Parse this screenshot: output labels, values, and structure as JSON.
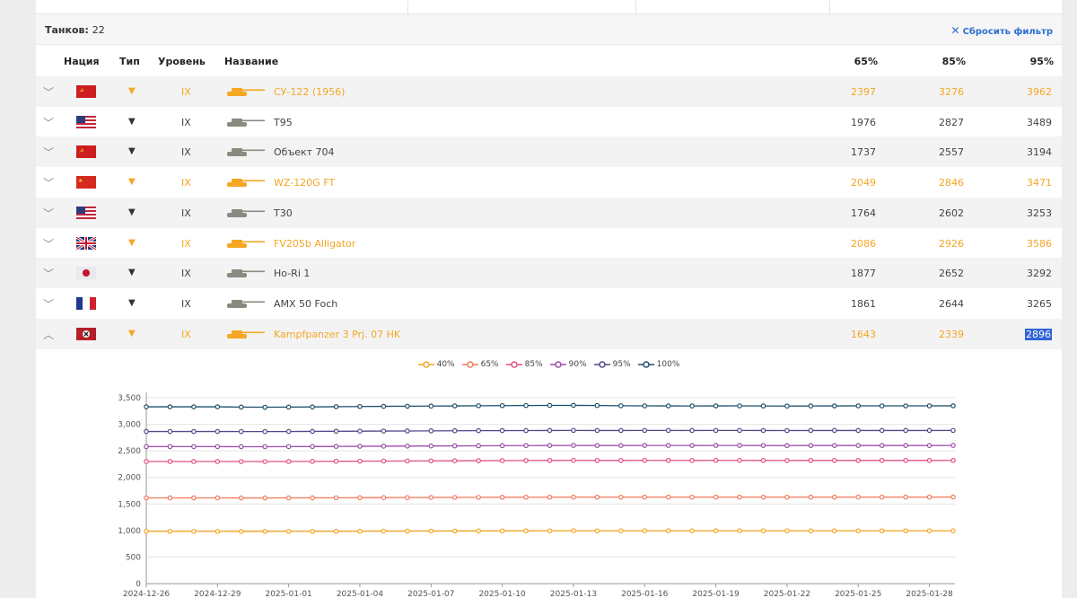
{
  "tanks_count": {
    "label": "Танков:",
    "value": "22"
  },
  "reset_filter": "Сбросить фильтр",
  "columns": {
    "nation": "Нация",
    "type": "Тип",
    "tier": "Уровень",
    "name": "Название",
    "p65": "65%",
    "p85": "85%",
    "p95": "95%"
  },
  "rows": [
    {
      "nation": "ussr",
      "premium": true,
      "tier": "IX",
      "name": "СУ-122 (1956)",
      "v65": "2397",
      "v85": "3276",
      "v95": "3962",
      "expanded": false
    },
    {
      "nation": "usa",
      "premium": false,
      "tier": "IX",
      "name": "T95",
      "v65": "1976",
      "v85": "2827",
      "v95": "3489",
      "expanded": false
    },
    {
      "nation": "ussr",
      "premium": false,
      "tier": "IX",
      "name": "Объект 704",
      "v65": "1737",
      "v85": "2557",
      "v95": "3194",
      "expanded": false
    },
    {
      "nation": "china",
      "premium": true,
      "tier": "IX",
      "name": "WZ-120G FT",
      "v65": "2049",
      "v85": "2846",
      "v95": "3471",
      "expanded": false
    },
    {
      "nation": "usa",
      "premium": false,
      "tier": "IX",
      "name": "T30",
      "v65": "1764",
      "v85": "2602",
      "v95": "3253",
      "expanded": false
    },
    {
      "nation": "uk",
      "premium": true,
      "tier": "IX",
      "name": "FV205b Alligator",
      "v65": "2086",
      "v85": "2926",
      "v95": "3586",
      "expanded": false
    },
    {
      "nation": "japan",
      "premium": false,
      "tier": "IX",
      "name": "Ho-Ri 1",
      "v65": "1877",
      "v85": "2652",
      "v95": "3292",
      "expanded": false
    },
    {
      "nation": "france",
      "premium": false,
      "tier": "IX",
      "name": "AMX 50 Foch",
      "v65": "1861",
      "v85": "2644",
      "v95": "3265",
      "expanded": false
    },
    {
      "nation": "germany",
      "premium": true,
      "tier": "IX",
      "name": "Kampfpanzer 3 Prj. 07 HK",
      "v65": "1643",
      "v85": "2339",
      "v95": "2896",
      "expanded": true
    }
  ],
  "colors": {
    "accent": "#f5a623",
    "link": "#2c6fcf",
    "selection": "#2f64d7"
  },
  "chart_data": {
    "type": "line",
    "title": "",
    "xlabel": "",
    "ylabel": "",
    "ylim": [
      0,
      3500
    ],
    "yticks": [
      "0",
      "500",
      "1,000",
      "1,500",
      "2,000",
      "2,500",
      "3,000",
      "3,500"
    ],
    "xticks": [
      "2024-12-26",
      "2024-12-29",
      "2025-01-01",
      "2025-01-04",
      "2025-01-07",
      "2025-01-10",
      "2025-01-13",
      "2025-01-16",
      "2025-01-19",
      "2025-01-22",
      "2025-01-25",
      "2025-01-28"
    ],
    "x_points": 35,
    "legend_position": "top-center",
    "grid": true,
    "series": [
      {
        "name": "40%",
        "color": "#f5a623",
        "values": [
          985,
          985,
          985,
          985,
          984,
          984,
          985,
          985,
          986,
          987,
          988,
          989,
          990,
          991,
          992,
          993,
          994,
          995,
          996,
          995,
          995,
          996,
          996,
          995,
          996,
          996,
          995,
          995,
          995,
          995,
          995,
          995,
          995,
          995,
          995
        ]
      },
      {
        "name": "65%",
        "color": "#f47a5a",
        "values": [
          1615,
          1615,
          1615,
          1615,
          1614,
          1614,
          1615,
          1616,
          1617,
          1618,
          1620,
          1621,
          1622,
          1623,
          1625,
          1626,
          1627,
          1628,
          1630,
          1629,
          1629,
          1630,
          1630,
          1629,
          1630,
          1630,
          1629,
          1629,
          1630,
          1630,
          1630,
          1630,
          1630,
          1630,
          1631
        ]
      },
      {
        "name": "85%",
        "color": "#e0508a",
        "values": [
          2300,
          2300,
          2300,
          2300,
          2299,
          2299,
          2300,
          2302,
          2304,
          2306,
          2308,
          2310,
          2312,
          2313,
          2315,
          2317,
          2318,
          2320,
          2321,
          2320,
          2320,
          2321,
          2321,
          2320,
          2321,
          2321,
          2320,
          2319,
          2320,
          2320,
          2320,
          2320,
          2320,
          2320,
          2321
        ]
      },
      {
        "name": "90%",
        "color": "#9b4fa8",
        "values": [
          2580,
          2580,
          2580,
          2580,
          2579,
          2579,
          2580,
          2582,
          2584,
          2586,
          2588,
          2590,
          2592,
          2594,
          2596,
          2598,
          2600,
          2601,
          2602,
          2601,
          2601,
          2602,
          2602,
          2601,
          2602,
          2602,
          2601,
          2600,
          2601,
          2601,
          2601,
          2601,
          2601,
          2601,
          2602
        ]
      },
      {
        "name": "95%",
        "color": "#4e4b8c",
        "values": [
          2865,
          2865,
          2865,
          2865,
          2864,
          2864,
          2865,
          2867,
          2869,
          2871,
          2873,
          2875,
          2877,
          2879,
          2881,
          2882,
          2883,
          2884,
          2885,
          2884,
          2884,
          2885,
          2885,
          2884,
          2885,
          2885,
          2884,
          2883,
          2884,
          2884,
          2884,
          2884,
          2884,
          2884,
          2885
        ]
      },
      {
        "name": "100%",
        "color": "#1e4f6e",
        "values": [
          3330,
          3330,
          3330,
          3330,
          3325,
          3322,
          3325,
          3328,
          3332,
          3335,
          3338,
          3341,
          3344,
          3347,
          3350,
          3352,
          3354,
          3356,
          3357,
          3354,
          3350,
          3348,
          3347,
          3346,
          3347,
          3348,
          3346,
          3344,
          3346,
          3347,
          3348,
          3348,
          3348,
          3348,
          3349
        ]
      }
    ]
  }
}
